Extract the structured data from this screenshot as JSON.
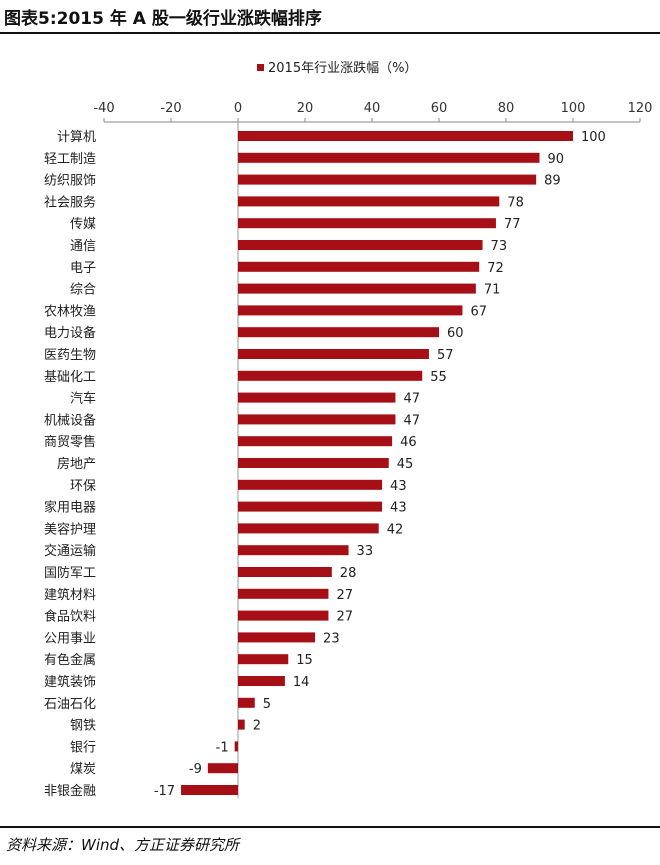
{
  "header": {
    "title": "图表5:2015 年 A 股一级行业涨跌幅排序"
  },
  "footer": {
    "source": "资料来源：Wind、方正证券研究所"
  },
  "chart_data": {
    "type": "bar",
    "orientation": "horizontal",
    "title": "",
    "xlabel": "",
    "ylabel": "",
    "xlim": [
      -40,
      120
    ],
    "xticks": [
      -40,
      -20,
      0,
      20,
      40,
      60,
      80,
      100,
      120
    ],
    "x_axis_position": "top",
    "grid": false,
    "legend_position": "top",
    "categories": [
      "计算机",
      "轻工制造",
      "纺织服饰",
      "社会服务",
      "传媒",
      "通信",
      "电子",
      "综合",
      "农林牧渔",
      "电力设备",
      "医药生物",
      "基础化工",
      "汽车",
      "机械设备",
      "商贸零售",
      "房地产",
      "环保",
      "家用电器",
      "美容护理",
      "交通运输",
      "国防军工",
      "建筑材料",
      "食品饮料",
      "公用事业",
      "有色金属",
      "建筑装饰",
      "石油石化",
      "钢铁",
      "银行",
      "煤炭",
      "非银金融"
    ],
    "series": [
      {
        "name": "2015年行业涨跌幅（%）",
        "color": "#A50F15",
        "values": [
          100,
          90,
          89,
          78,
          77,
          73,
          72,
          71,
          67,
          60,
          57,
          55,
          47,
          47,
          46,
          45,
          43,
          43,
          42,
          33,
          28,
          27,
          27,
          23,
          15,
          14,
          5,
          2,
          -1,
          -9,
          -17
        ]
      }
    ]
  }
}
